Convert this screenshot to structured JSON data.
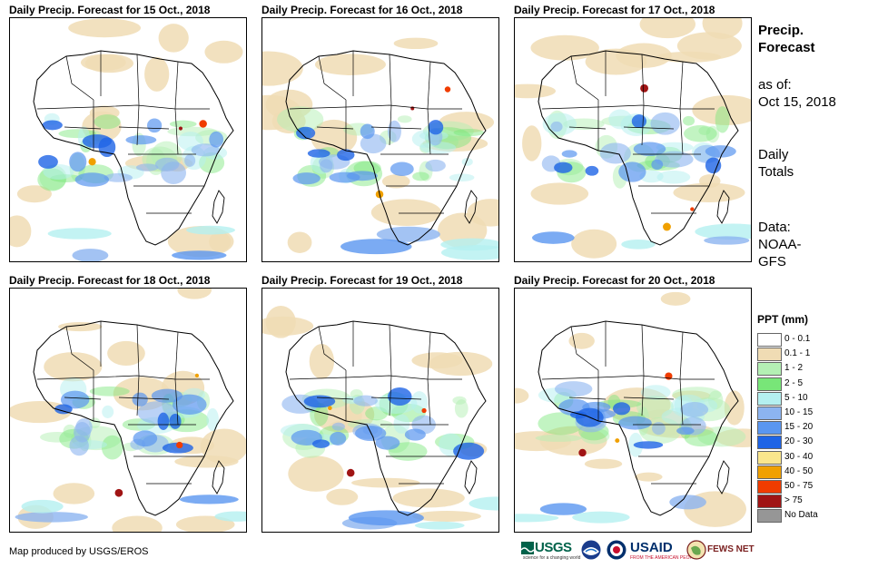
{
  "panels": [
    {
      "title": "Daily Precip. Forecast for 15 Oct., 2018"
    },
    {
      "title": "Daily Precip. Forecast for 16 Oct., 2018"
    },
    {
      "title": "Daily Precip. Forecast for 17 Oct., 2018"
    },
    {
      "title": "Daily Precip. Forecast for 18 Oct., 2018"
    },
    {
      "title": "Daily Precip. Forecast for 19 Oct., 2018"
    },
    {
      "title": "Daily Precip. Forecast for 20 Oct., 2018"
    }
  ],
  "sidebar": {
    "heading_line1": "Precip.",
    "heading_line2": "Forecast",
    "asof_line1": "as of:",
    "asof_line2": "Oct 15, 2018",
    "totals_line1": "Daily",
    "totals_line2": "Totals",
    "data_line1": "Data:",
    "data_line2": "NOAA-",
    "data_line3": "GFS"
  },
  "legend": {
    "title": "PPT (mm)",
    "items": [
      {
        "label": "0 - 0.1",
        "color": "#ffffff"
      },
      {
        "label": "0.1 - 1",
        "color": "#f0dcb4"
      },
      {
        "label": "1 - 2",
        "color": "#b4f0b4"
      },
      {
        "label": "2 - 5",
        "color": "#78e678"
      },
      {
        "label": "5 - 10",
        "color": "#b4f0f0"
      },
      {
        "label": "10 - 15",
        "color": "#8cb4f0"
      },
      {
        "label": "15 - 20",
        "color": "#5a96f0"
      },
      {
        "label": "20 - 30",
        "color": "#1e64e6"
      },
      {
        "label": "30 - 40",
        "color": "#fae68c"
      },
      {
        "label": "40 - 50",
        "color": "#f0a000"
      },
      {
        "label": "50 - 75",
        "color": "#f03c00"
      },
      {
        "label": "> 75",
        "color": "#a01414"
      },
      {
        "label": "No Data",
        "color": "#969696"
      }
    ]
  },
  "footer": {
    "credit": "Map produced by USGS/EROS",
    "logo_usgs": "USGS",
    "logo_usgs_tagline": "science for a changing world",
    "logo_usaid": "USAID",
    "logo_usaid_tagline": "FROM THE AMERICAN PEOPLE",
    "logo_fews": "FEWS NET"
  }
}
